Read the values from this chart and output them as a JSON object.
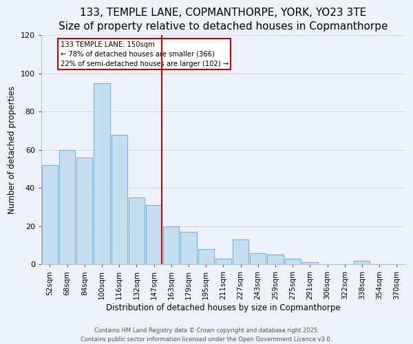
{
  "title1": "133, TEMPLE LANE, COPMANTHORPE, YORK, YO23 3TE",
  "title2": "Size of property relative to detached houses in Copmanthorpe",
  "xlabel": "Distribution of detached houses by size in Copmanthorpe",
  "ylabel": "Number of detached properties",
  "bar_labels": [
    "52sqm",
    "68sqm",
    "84sqm",
    "100sqm",
    "116sqm",
    "132sqm",
    "147sqm",
    "163sqm",
    "179sqm",
    "195sqm",
    "211sqm",
    "227sqm",
    "243sqm",
    "259sqm",
    "275sqm",
    "291sqm",
    "306sqm",
    "322sqm",
    "338sqm",
    "354sqm",
    "370sqm"
  ],
  "bar_values": [
    52,
    60,
    56,
    95,
    68,
    35,
    31,
    20,
    17,
    8,
    3,
    13,
    6,
    5,
    3,
    1,
    0,
    0,
    2,
    0,
    0
  ],
  "bar_color": "#c5dff0",
  "bar_edge_color": "#7ab0d4",
  "vline_color": "#cc0000",
  "annotation_title": "133 TEMPLE LANE: 150sqm",
  "annotation_line1": "← 78% of detached houses are smaller (366)",
  "annotation_line2": "22% of semi-detached houses are larger (102) →",
  "annotation_box_facecolor": "#ffffff",
  "annotation_box_edgecolor": "#cc0000",
  "ylim": [
    0,
    120
  ],
  "yticks": [
    0,
    20,
    40,
    60,
    80,
    100,
    120
  ],
  "footer1": "Contains HM Land Registry data © Crown copyright and database right 2025.",
  "footer2": "Contains public sector information licensed under the Open Government Licence v3.0.",
  "bg_color": "#eef2fb",
  "grid_color": "#d0d8ea",
  "title_fontsize": 11,
  "subtitle_fontsize": 9.5,
  "axis_label_fontsize": 8.5,
  "tick_fontsize": 7.5,
  "footer_fontsize": 6.0
}
